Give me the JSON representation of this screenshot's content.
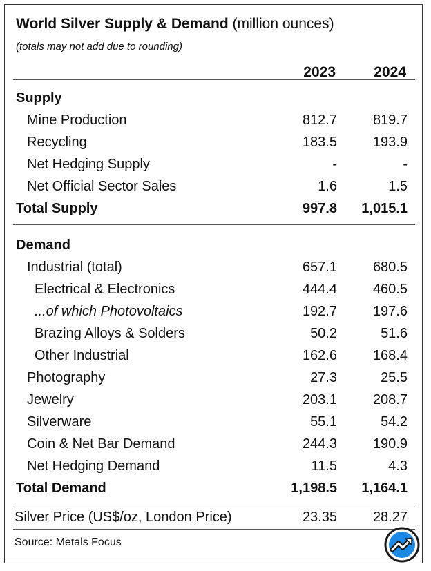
{
  "title": {
    "main": "World Silver Supply & Demand",
    "unit": "(million ounces)",
    "note": "(totals may not add due to rounding)"
  },
  "years": [
    "2023",
    "2024"
  ],
  "supply": {
    "header": "Supply",
    "rows": [
      {
        "label": "Mine Production",
        "v2023": "812.7",
        "v2024": "819.7"
      },
      {
        "label": "Recycling",
        "v2023": "183.5",
        "v2024": "193.9"
      },
      {
        "label": "Net Hedging Supply",
        "v2023": "-",
        "v2024": "-"
      },
      {
        "label": "Net Official Sector Sales",
        "v2023": "1.6",
        "v2024": "1.5"
      }
    ],
    "total": {
      "label": "Total Supply",
      "v2023": "997.8",
      "v2024": "1,015.1"
    }
  },
  "demand": {
    "header": "Demand",
    "rows": [
      {
        "label": "Industrial (total)",
        "v2023": "657.1",
        "v2024": "680.5"
      },
      {
        "label": "Electrical & Electronics",
        "v2023": "444.4",
        "v2024": "460.5"
      },
      {
        "label": "...of which Photovoltaics",
        "v2023": "192.7",
        "v2024": "197.6"
      },
      {
        "label": "Brazing Alloys & Solders",
        "v2023": "50.2",
        "v2024": "51.6"
      },
      {
        "label": "Other Industrial",
        "v2023": "162.6",
        "v2024": "168.4"
      },
      {
        "label": "Photography",
        "v2023": "27.3",
        "v2024": "25.5"
      },
      {
        "label": "Jewelry",
        "v2023": "203.1",
        "v2024": "208.7"
      },
      {
        "label": "Silverware",
        "v2023": "55.1",
        "v2024": "54.2"
      },
      {
        "label": "Coin & Net Bar Demand",
        "v2023": "244.3",
        "v2024": "190.9"
      },
      {
        "label": "Net Hedging Demand",
        "v2023": "11.5",
        "v2024": "4.3"
      }
    ],
    "total": {
      "label": "Total Demand",
      "v2023": "1,198.5",
      "v2024": "1,164.1"
    }
  },
  "price": {
    "label": "Silver Price (US$/oz, London Price)",
    "v2023": "23.35",
    "v2024": "28.27"
  },
  "source": "Source: Metals Focus",
  "logo": {
    "icon": "trend-arrow-icon",
    "ring_color": "#1a1a1a",
    "fill_color": "#1e88e5"
  }
}
